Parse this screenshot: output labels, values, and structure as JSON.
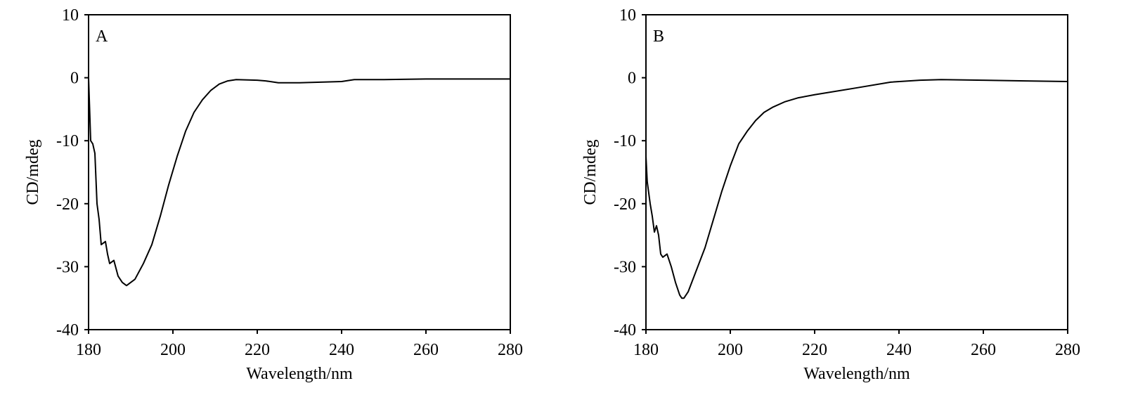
{
  "chart_data": [
    {
      "type": "line",
      "panel_label": "A",
      "x_label": "Wavelength/nm",
      "y_label": "CD/mdeg",
      "x": [
        180,
        180.5,
        181,
        181.5,
        182,
        182.5,
        183,
        184,
        184.5,
        185,
        186,
        187,
        188,
        189,
        190,
        191,
        193,
        195,
        197,
        199,
        201,
        203,
        205,
        207,
        209,
        211,
        213,
        215,
        220,
        222,
        225,
        230,
        240,
        243,
        250,
        260,
        280
      ],
      "series": [
        {
          "color": "#000000",
          "values": [
            0,
            -10,
            -10.5,
            -12,
            -20,
            -22.5,
            -26.5,
            -26,
            -28,
            -29.5,
            -29,
            -31.5,
            -32.5,
            -33,
            -32.5,
            -32,
            -29.5,
            -26.5,
            -22,
            -17,
            -12.5,
            -8.5,
            -5.5,
            -3.5,
            -2,
            -1,
            -0.5,
            -0.3,
            -0.4,
            -0.5,
            -0.8,
            -0.8,
            -0.6,
            -0.3,
            -0.3,
            -0.2,
            -0.2
          ]
        }
      ],
      "xlim": [
        180,
        280
      ],
      "xticks": [
        180,
        200,
        220,
        240,
        260,
        280
      ],
      "ylim": [
        -40,
        10
      ],
      "yticks": [
        -40,
        -30,
        -20,
        -10,
        0,
        10
      ]
    },
    {
      "type": "line",
      "panel_label": "B",
      "x_label": "Wavelength/nm",
      "y_label": "CD/mdeg",
      "x": [
        180,
        180.3,
        181,
        181.5,
        182,
        182.5,
        183,
        183.5,
        184,
        185,
        186,
        187,
        188,
        188.5,
        189,
        190,
        192,
        194,
        196,
        198,
        200,
        202,
        204,
        206,
        208,
        210,
        213,
        216,
        220,
        230,
        238,
        245,
        250,
        260,
        270,
        280
      ],
      "series": [
        {
          "color": "#000000",
          "values": [
            -12.5,
            -16.5,
            -20,
            -22,
            -24.5,
            -23.5,
            -25,
            -28,
            -28.5,
            -28,
            -30,
            -32.5,
            -34.5,
            -35,
            -35,
            -34,
            -30.5,
            -27,
            -22.5,
            -18,
            -14,
            -10.5,
            -8.5,
            -6.8,
            -5.5,
            -4.7,
            -3.8,
            -3.2,
            -2.7,
            -1.6,
            -0.7,
            -0.4,
            -0.3,
            -0.4,
            -0.5,
            -0.6
          ]
        }
      ],
      "xlim": [
        180,
        280
      ],
      "xticks": [
        180,
        200,
        220,
        240,
        260,
        280
      ],
      "ylim": [
        -40,
        10
      ],
      "yticks": [
        -40,
        -30,
        -20,
        -10,
        0,
        10
      ]
    }
  ]
}
